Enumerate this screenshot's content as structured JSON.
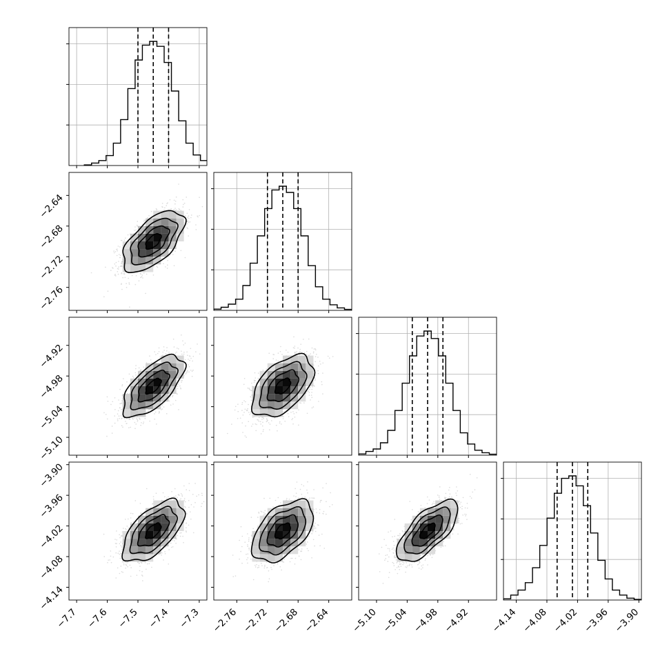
{
  "chart_data": {
    "type": "corner",
    "parameters": [
      {
        "median": -7.45,
        "q16": -7.5,
        "q84": -7.4,
        "sigma": 0.05,
        "range": [
          -7.725,
          -7.275
        ],
        "ticks": [
          "−7.7",
          "−7.6",
          "−7.5",
          "−7.4",
          "−7.3"
        ],
        "tick_values": [
          -7.7,
          -7.6,
          -7.5,
          -7.4,
          -7.3
        ],
        "hist": [
          0.005,
          0.02,
          0.04,
          0.08,
          0.18,
          0.37,
          0.62,
          0.85,
          0.97,
          1.0,
          0.96,
          0.83,
          0.6,
          0.36,
          0.18,
          0.085,
          0.04,
          0.015,
          0.005
        ]
      },
      {
        "median": -2.7,
        "q16": -2.72,
        "q84": -2.68,
        "sigma": 0.02,
        "range": [
          -2.79,
          -2.61
        ],
        "ticks": [
          "−2.76",
          "−2.72",
          "−2.68",
          "−2.64"
        ],
        "tick_values": [
          -2.76,
          -2.72,
          -2.68,
          -2.64
        ],
        "hist": [
          0.01,
          0.025,
          0.05,
          0.09,
          0.2,
          0.38,
          0.6,
          0.82,
          0.97,
          1.0,
          0.95,
          0.82,
          0.6,
          0.36,
          0.19,
          0.09,
          0.045,
          0.02,
          0.008
        ]
      },
      {
        "median": -5.0,
        "q16": -5.03,
        "q84": -4.97,
        "sigma": 0.03,
        "range": [
          -5.135,
          -4.865
        ],
        "ticks": [
          "−5.10",
          "−5.04",
          "−4.98",
          "−4.92"
        ],
        "tick_values": [
          -5.1,
          -5.04,
          -4.98,
          -4.92
        ],
        "hist": [
          0.01,
          0.03,
          0.05,
          0.1,
          0.2,
          0.36,
          0.58,
          0.8,
          0.96,
          1.0,
          0.94,
          0.8,
          0.58,
          0.36,
          0.18,
          0.09,
          0.04,
          0.02,
          0.008
        ]
      },
      {
        "median": -4.03,
        "q16": -4.06,
        "q84": -4.0,
        "sigma": 0.03,
        "range": [
          -4.165,
          -3.895
        ],
        "ticks": [
          "−4.14",
          "−4.08",
          "−4.02",
          "−3.96",
          "−3.90"
        ],
        "tick_values": [
          -4.14,
          -4.08,
          -4.02,
          -3.96,
          -3.9
        ],
        "hist": [
          0.01,
          0.04,
          0.08,
          0.14,
          0.26,
          0.44,
          0.66,
          0.86,
          0.98,
          1.0,
          0.92,
          0.76,
          0.54,
          0.32,
          0.17,
          0.08,
          0.04,
          0.015,
          0.005
        ]
      }
    ],
    "correlations": [
      [
        1,
        0.6,
        0.65,
        0.6
      ],
      [
        0.6,
        1,
        0.5,
        0.5
      ],
      [
        0.65,
        0.5,
        1,
        0.7
      ],
      [
        0.6,
        0.5,
        0.7,
        1
      ]
    ],
    "grid": true,
    "quantiles": [
      0.16,
      0.5,
      0.84
    ]
  }
}
